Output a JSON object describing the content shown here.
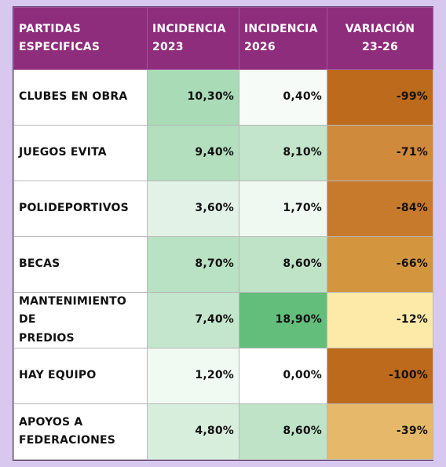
{
  "headers": {
    "col1_line1": "PARTIDAS",
    "col1_line2": "ESPECIFICAS",
    "col2_line1": "INCIDENCIA",
    "col2_line2": "2023",
    "col3_line1": "INCIDENCIA",
    "col3_line2": "2026",
    "col4_line1": "VARIACIÓN",
    "col4_line2": "23-26"
  },
  "colors": {
    "header_bg": "#8f2d7d",
    "header_text": "#ffffff"
  },
  "rows": [
    {
      "name_l1": "CLUBES EN OBRA",
      "name_l2": "",
      "inc2023": "10,30%",
      "inc2026": "0,40%",
      "variacion": "-99%",
      "bg2023": "#a9dbb6",
      "bg2026": "#f6fbf7",
      "bgvar": "#bd6a1c"
    },
    {
      "name_l1": "JUEGOS EVITA",
      "name_l2": "",
      "inc2023": "9,40%",
      "inc2026": "8,10%",
      "variacion": "-71%",
      "bg2023": "#b3dfbe",
      "bg2026": "#c2e5cb",
      "bgvar": "#d08a3b"
    },
    {
      "name_l1": "POLIDEPORTIVOS",
      "name_l2": "",
      "inc2023": "3,60%",
      "inc2026": "1,70%",
      "variacion": "-84%",
      "bg2023": "#e2f2e6",
      "bg2026": "#eff8f1",
      "bgvar": "#c77a2c"
    },
    {
      "name_l1": "BECAS",
      "name_l2": "",
      "inc2023": "8,70%",
      "inc2026": "8,60%",
      "variacion": "-66%",
      "bg2023": "#b9e1c3",
      "bg2026": "#bee3c7",
      "bgvar": "#d4953f"
    },
    {
      "name_l1": "MANTENIMIENTO DE",
      "name_l2": "PREDIOS",
      "inc2023": "7,40%",
      "inc2026": "18,90%",
      "variacion": "-12%",
      "bg2023": "#c4e6cd",
      "bg2026": "#63be7b",
      "bgvar": "#fde9a8"
    },
    {
      "name_l1": "HAY EQUIPO",
      "name_l2": "",
      "inc2023": "1,20%",
      "inc2026": "0,00%",
      "variacion": "-100%",
      "bg2023": "#f1f9f3",
      "bg2026": "#ffffff",
      "bgvar": "#bd6a1c"
    },
    {
      "name_l1": "APOYOS A",
      "name_l2": "FEDERACIONES",
      "inc2023": "4,80%",
      "inc2026": "8,60%",
      "variacion": "-39%",
      "bg2023": "#d8eedd",
      "bg2026": "#bee3c7",
      "bgvar": "#e6b96a"
    }
  ]
}
